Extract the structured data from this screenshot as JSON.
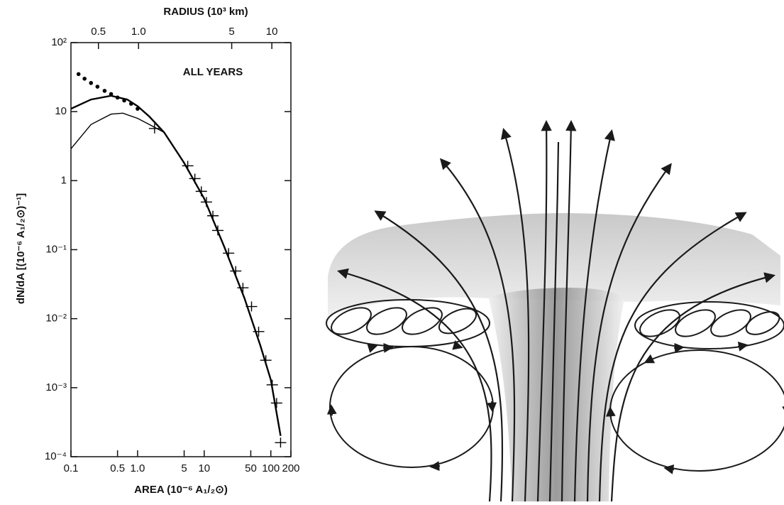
{
  "chart_data": {
    "type": "line",
    "x_label": "AREA (10⁻⁶ A₁/₂⊙)",
    "y_label": "dN/dA [(10⁻⁶ A₁/₂⊙)⁻¹]",
    "x2_label": "RADIUS (10³ km)",
    "annotation": "ALL YEARS",
    "log_x": true,
    "log_y": true,
    "xlim": [
      0.1,
      200
    ],
    "xticks": [
      0.1,
      0.5,
      {
        "value": 1,
        "label": "1.0"
      },
      5,
      10,
      50,
      100,
      200
    ],
    "ylim": [
      0.0001,
      100
    ],
    "yticks": [
      {
        "value": 0.0001,
        "label": "10⁻⁴"
      },
      {
        "value": 0.001,
        "label": "10⁻³"
      },
      {
        "value": 0.01,
        "label": "10⁻²"
      },
      {
        "value": 0.1,
        "label": "10⁻¹"
      },
      1,
      10,
      {
        "value": 100,
        "label": "10²"
      }
    ],
    "x2lim": [
      0.311,
      13.9
    ],
    "x2ticks": [
      0.5,
      {
        "value": 1,
        "label": "1.0"
      },
      5,
      10
    ],
    "series": [
      {
        "style": "dots",
        "color": "#000000",
        "x": [
          0.13,
          0.16,
          0.2,
          0.25,
          0.32,
          0.4,
          0.5,
          0.63,
          0.8,
          1.0
        ],
        "values": [
          35,
          30,
          26,
          23,
          20,
          18,
          16,
          14.5,
          13,
          11
        ]
      },
      {
        "style": "line",
        "width": 2.4,
        "color": "#000000",
        "x": [
          0.1,
          0.2,
          0.4,
          0.7,
          1.0,
          1.5,
          2.5,
          5,
          10,
          20,
          40,
          70,
          100,
          140
        ],
        "values": [
          11,
          15,
          17,
          15,
          12,
          8.5,
          5,
          1.8,
          0.55,
          0.11,
          0.02,
          0.004,
          0.0013,
          0.0002
        ]
      },
      {
        "style": "line",
        "width": 1.4,
        "color": "#000000",
        "x": [
          0.1,
          0.2,
          0.4,
          0.6,
          1.0,
          1.5,
          2.5
        ],
        "values": [
          2.9,
          6.5,
          9.2,
          9.5,
          8,
          6.5,
          5
        ]
      },
      {
        "style": "cross",
        "color": "#000000",
        "x": [
          1.8,
          5.66,
          7.24,
          9.05,
          10.8,
          13.5,
          16,
          23.2,
          29.7,
          38.1,
          51.3,
          65.6,
          84.1,
          105,
          122,
          140
        ],
        "values": [
          5.7,
          1.64,
          1.07,
          0.7,
          0.49,
          0.31,
          0.19,
          0.089,
          0.049,
          0.028,
          0.015,
          0.0065,
          0.0025,
          0.0011,
          0.0006,
          0.00016
        ]
      }
    ]
  }
}
